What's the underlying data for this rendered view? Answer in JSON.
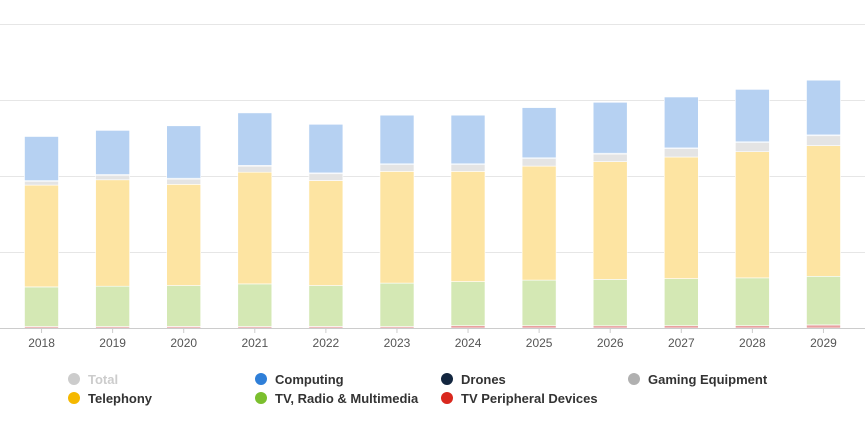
{
  "chart_data": {
    "type": "bar",
    "stacked": true,
    "title": "",
    "xlabel": "",
    "ylabel": "",
    "ylim": [
      0,
      400
    ],
    "grid": true,
    "legend_position": "bottom",
    "categories": [
      "2018",
      "2019",
      "2020",
      "2021",
      "2022",
      "2023",
      "2024",
      "2025",
      "2026",
      "2027",
      "2028",
      "2029"
    ],
    "series": [
      {
        "name": "TV Peripheral Devices",
        "color": "#e8a0a0",
        "legend_color": "#d9281e",
        "values": [
          2,
          2,
          2,
          2,
          2,
          2,
          3,
          3,
          3,
          3,
          3,
          4
        ]
      },
      {
        "name": "TV, Radio & Multimedia",
        "color": "#d4e8b4",
        "legend_color": "#7bbf2e",
        "values": [
          52,
          53,
          54,
          56,
          54,
          57,
          58,
          60,
          61,
          62,
          63,
          64
        ]
      },
      {
        "name": "Telephony",
        "color": "#fde4a2",
        "legend_color": "#f5b800",
        "values": [
          134,
          140,
          133,
          147,
          138,
          147,
          145,
          150,
          155,
          160,
          166,
          172
        ]
      },
      {
        "name": "Gaming Equipment",
        "color": "#e4e4e4",
        "legend_color": "#b0b0b0",
        "values": [
          5,
          6,
          7,
          8,
          9,
          9,
          9,
          10,
          10,
          11,
          12,
          13
        ]
      },
      {
        "name": "Drones",
        "color": "#bccfe8",
        "legend_color": "#13263f",
        "values": [
          1,
          1,
          1,
          1,
          1,
          1,
          1,
          1,
          1,
          1,
          1,
          1
        ]
      },
      {
        "name": "Computing",
        "color": "#b6d1f2",
        "legend_color": "#2f7fd8",
        "values": [
          58,
          58,
          69,
          69,
          64,
          64,
          64,
          66,
          67,
          67,
          69,
          72
        ]
      }
    ],
    "total_series": {
      "name": "Total",
      "visible": false,
      "legend_color": "#cccccc"
    }
  },
  "legend": {
    "items": [
      {
        "label": "Total",
        "color": "#cccccc",
        "hidden": true
      },
      {
        "label": "Computing",
        "color": "#2f7fd8",
        "hidden": false
      },
      {
        "label": "Drones",
        "color": "#13263f",
        "hidden": false
      },
      {
        "label": "Gaming Equipment",
        "color": "#b0b0b0",
        "hidden": false
      },
      {
        "label": "Telephony",
        "color": "#f5b800",
        "hidden": false
      },
      {
        "label": "TV, Radio & Multimedia",
        "color": "#7bbf2e",
        "hidden": false
      },
      {
        "label": "TV Peripheral Devices",
        "color": "#d9281e",
        "hidden": false
      }
    ]
  }
}
